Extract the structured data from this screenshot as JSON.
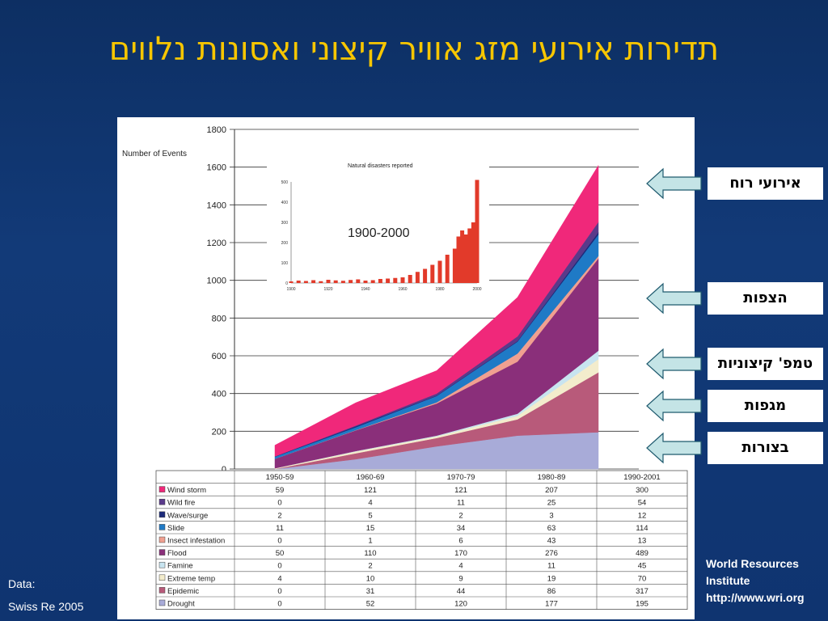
{
  "title": "תדירות אירועי מזג  אוויר קיצוני ואסונות נלווים",
  "callouts": [
    "אירועי רוח",
    "הצפות",
    "טמפ' קיצוניות",
    "מגפות",
    "בצורות"
  ],
  "source": {
    "line1": "World Resources",
    "line2": "Institute",
    "line3": "http://www.wri.org"
  },
  "data_note": {
    "line1": "Data:",
    "line2": "Swiss Re 2005"
  },
  "chart_data": [
    {
      "type": "area",
      "ylabel": "Number of Events",
      "ylim": [
        0,
        1800
      ],
      "yticks": [
        0,
        200,
        400,
        600,
        800,
        1000,
        1200,
        1400,
        1600,
        1800
      ],
      "categories": [
        "1950-59",
        "1960-69",
        "1970-79",
        "1980-89",
        "1990-2001"
      ],
      "stack_order": [
        "Drought",
        "Epidemic",
        "Extreme temp",
        "Famine",
        "Flood",
        "Insect infestation",
        "Slide",
        "Wave/surge",
        "Wild fire",
        "Wind storm"
      ],
      "colors": {
        "Drought": "#a8abd8",
        "Epidemic": "#b85a7a",
        "Extreme temp": "#f3eccc",
        "Famine": "#c8e4f0",
        "Flood": "#8a2f7a",
        "Insect infestation": "#f0a090",
        "Slide": "#1f7ac6",
        "Wave/surge": "#1c2a7a",
        "Wild fire": "#5a3a8a",
        "Wind storm": "#f0287a"
      },
      "table": {
        "columns": [
          "1950-59",
          "1960-69",
          "1970-79",
          "1980-89",
          "1990-2001"
        ],
        "rows": [
          {
            "name": "Wind storm",
            "values": [
              59,
              121,
              121,
              207,
              300
            ]
          },
          {
            "name": "Wild fire",
            "values": [
              0,
              4,
              11,
              25,
              54
            ]
          },
          {
            "name": "Wave/surge",
            "values": [
              2,
              5,
              2,
              3,
              12
            ]
          },
          {
            "name": "Slide",
            "values": [
              11,
              15,
              34,
              63,
              114
            ]
          },
          {
            "name": "Insect infestation",
            "values": [
              0,
              1,
              6,
              43,
              13
            ]
          },
          {
            "name": "Flood",
            "values": [
              50,
              110,
              170,
              276,
              489
            ]
          },
          {
            "name": "Famine",
            "values": [
              0,
              2,
              4,
              11,
              45
            ]
          },
          {
            "name": "Extreme temp",
            "values": [
              4,
              10,
              9,
              19,
              70
            ]
          },
          {
            "name": "Epidemic",
            "values": [
              0,
              31,
              44,
              86,
              317
            ]
          },
          {
            "name": "Drought",
            "values": [
              0,
              52,
              120,
              177,
              195
            ]
          }
        ]
      }
    },
    {
      "type": "bar",
      "title": "Natural disasters reported",
      "annotation": "1900-2000",
      "ylim": [
        0,
        500
      ],
      "yticks": [
        0,
        100,
        200,
        300,
        400,
        500
      ],
      "xticks": [
        "1900",
        "1920",
        "1940",
        "1960",
        "1980",
        "2000"
      ],
      "x": [
        1900,
        1904,
        1908,
        1912,
        1916,
        1920,
        1924,
        1928,
        1932,
        1936,
        1940,
        1944,
        1948,
        1952,
        1956,
        1960,
        1964,
        1968,
        1972,
        1976,
        1980,
        1984,
        1988,
        1990,
        1992,
        1994,
        1996,
        1998,
        2000
      ],
      "values": [
        8,
        12,
        10,
        14,
        9,
        16,
        13,
        11,
        15,
        18,
        12,
        14,
        20,
        22,
        25,
        28,
        40,
        55,
        70,
        90,
        110,
        140,
        170,
        230,
        260,
        240,
        270,
        300,
        510
      ],
      "color": "#e23a2a"
    }
  ]
}
